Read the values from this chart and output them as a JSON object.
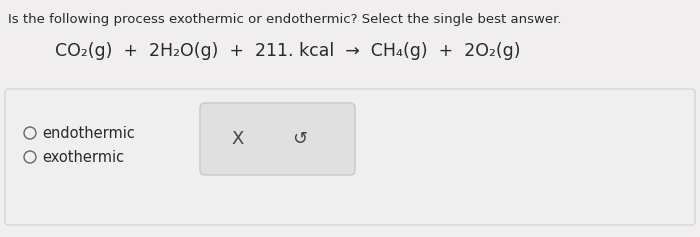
{
  "bg_color": "#f0eeee",
  "question_text": "Is the following process exothermic or endothermic? Select the single best answer.",
  "equation": "CO₂(g)  +  2H₂O(g)  +  211. kcal  →  CH₄(g)  +  2O₂(g)",
  "option1": "endothermic",
  "option2": "exothermic",
  "panel_bg": "#efefef",
  "panel_border": "#d0d0d0",
  "answer_box_bg": "#e0e0e0",
  "answer_box_border": "#c8c8c8",
  "x_symbol": "X",
  "undo_symbol": "↺",
  "question_fontsize": 9.5,
  "equation_fontsize": 12.5,
  "options_fontsize": 10.5,
  "symbol_fontsize": 13,
  "text_color": "#2a2a2a",
  "circle_color": "#666666"
}
